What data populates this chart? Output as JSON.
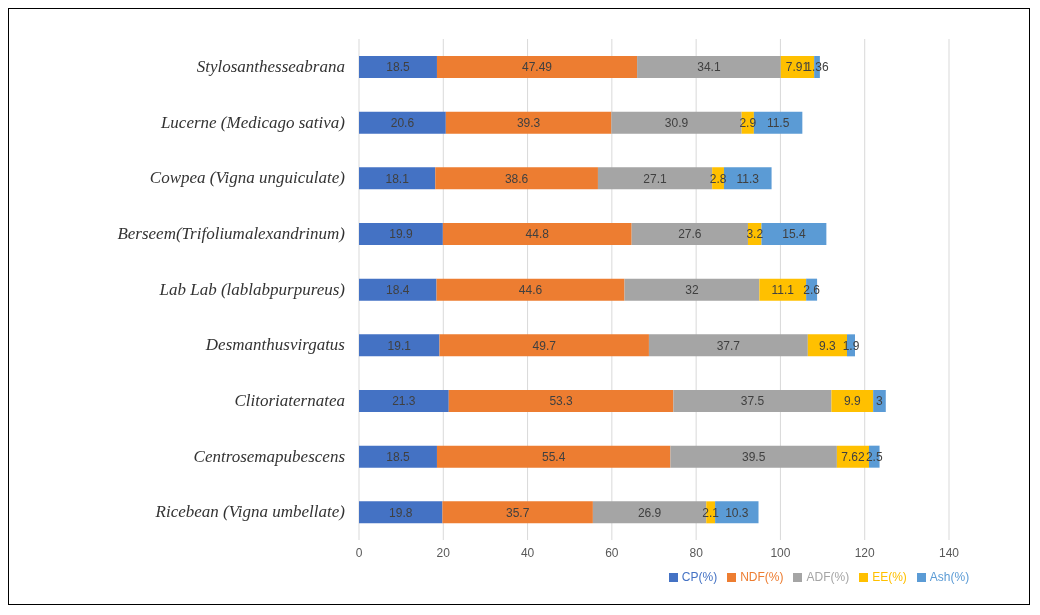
{
  "chart_data": {
    "type": "bar",
    "orientation": "horizontal",
    "stacked": true,
    "data_labels": true,
    "grid": "x",
    "legend": "bottom",
    "categories": [
      "Stylosanthesseabrana",
      "Lucerne (Medicago sativa)",
      "Cowpea (Vigna unguiculate)",
      "Berseem(Trifoliumalexandrinum)",
      "Lab Lab (lablabpurpureus)",
      "Desmanthusvirgatus",
      "Clitoriaternatea",
      "Centrosemapubescens",
      "Ricebean (Vigna umbellate)"
    ],
    "series": [
      {
        "name": "CP(%)",
        "color": "#4472c4",
        "values": [
          18.5,
          20.6,
          18.1,
          19.9,
          18.4,
          19.1,
          21.3,
          18.5,
          19.8
        ]
      },
      {
        "name": "NDF(%)",
        "color": "#ed7d31",
        "values": [
          47.49,
          39.3,
          38.6,
          44.8,
          44.6,
          49.7,
          53.3,
          55.4,
          35.7
        ]
      },
      {
        "name": "ADF(%)",
        "color": "#a5a5a5",
        "values": [
          34.1,
          30.9,
          27.1,
          27.6,
          32,
          37.7,
          37.5,
          39.5,
          26.9
        ]
      },
      {
        "name": "EE(%)",
        "color": "#ffc000",
        "values": [
          7.91,
          2.9,
          2.8,
          3.2,
          11.1,
          9.3,
          9.9,
          7.62,
          2.1
        ]
      },
      {
        "name": "Ash(%)",
        "color": "#5b9bd5",
        "values": [
          1.36,
          11.5,
          11.3,
          15.4,
          2.6,
          1.9,
          3,
          2.5,
          10.3
        ]
      }
    ],
    "xlim": [
      0,
      140
    ],
    "xticks": [
      0,
      20,
      40,
      60,
      80,
      100,
      120,
      140
    ]
  }
}
